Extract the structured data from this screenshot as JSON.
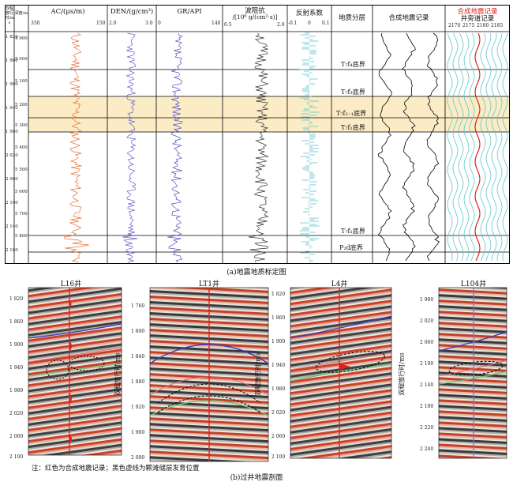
{
  "top_panel": {
    "columns": {
      "twt": "双程旅行时/ms",
      "depth": "深度/m",
      "ac": {
        "title": "AC/(μs/m)",
        "min": "350",
        "max": "150"
      },
      "den": {
        "title": "DEN/(g/cm³)",
        "min": "2.0",
        "max": "3.0"
      },
      "gr": {
        "title": "GR/API",
        "min": "0",
        "max": "140"
      },
      "imp": {
        "title_line1": "波阻抗",
        "title_line2": "/[10⁶ g/(cm²·s)]",
        "min": "0.5",
        "max": "2.0"
      },
      "refl": {
        "title": "反射系数",
        "min": "-0.1",
        "mid": "0",
        "max": "0.1"
      },
      "strat": {
        "title": "地质分层"
      },
      "synth": {
        "title": "合成地震记录"
      },
      "trace": {
        "title_red": "合成地震记录",
        "title_black": "井旁道记录",
        "ticks": [
          "2170",
          "2175",
          "2180",
          "2185"
        ]
      }
    },
    "twt_ticks": [
      "1 820",
      "1 860",
      "1 900",
      "1 940",
      "1 980",
      "2 020",
      "2 060",
      "2 100",
      "2 140",
      "2 180"
    ],
    "depth_ticks": [
      "4 900",
      "5 000",
      "5 100",
      "5 200",
      "5 300",
      "5 400",
      "5 500",
      "5 600",
      "5 700",
      "5 800"
    ],
    "horizons": [
      "T₇f₄底界",
      "T₇f₃底界",
      "T₇f₂₋₁底界",
      "T₇f₁底界",
      "T₇f₁底界",
      "P₂d底界"
    ],
    "caption": "(a)地震地质标定图"
  },
  "bottom_panel": {
    "wells": [
      "L16井",
      "LT1井",
      "L4井",
      "L104井"
    ],
    "axis_label": "双程旅行时/ms",
    "l16_ticks": [
      "1 820",
      "1 860",
      "1 900",
      "1 940",
      "1 980",
      "2 020",
      "2 060",
      "2 100"
    ],
    "lt1_ticks": [
      "1 760",
      "1 800",
      "1 840",
      "1 880",
      "1 920",
      "1 960",
      "2 000"
    ],
    "l4_ticks": [
      "1 820",
      "1 860",
      "1 900",
      "1 940",
      "1 980",
      "2 020",
      "2 060",
      "2 100"
    ],
    "l104_ticks": [
      "1 980",
      "2 020",
      "2 060",
      "2 100",
      "2 140",
      "2 180",
      "2 220",
      "2 240"
    ],
    "note": "注：红色为合成地震记录；黑色虚线为颗滩储层发育位置",
    "caption": "(b)过井地震剖面"
  },
  "colors": {
    "ac": "#e8703a",
    "den": "#6a5acd",
    "gr": "#5050c0",
    "imp": "#333333",
    "refl": "#5cc6cf",
    "highlight": "#fbecc6",
    "synthetic_red": "#e02020"
  }
}
